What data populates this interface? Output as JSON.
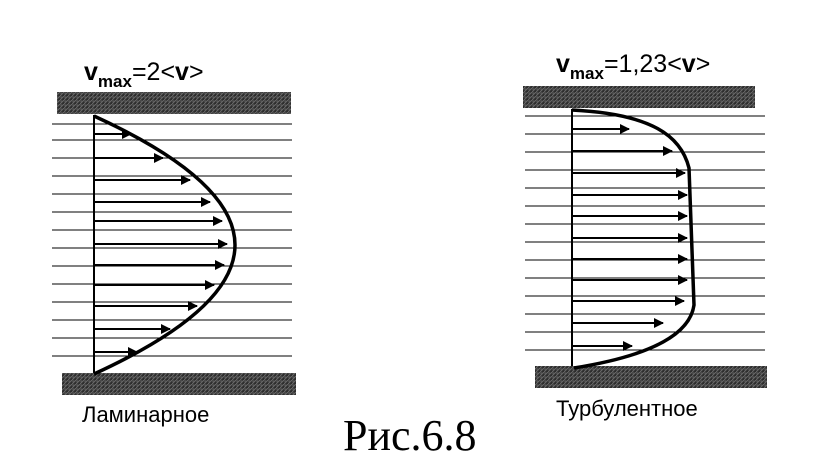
{
  "figure_caption": "Рис.6.8",
  "panels": [
    {
      "id": "laminar",
      "label": "Ламинарное",
      "formula": {
        "symbol": "v",
        "subscript": "max",
        "relation": "=2<",
        "avg_symbol": "v",
        "close": ">"
      },
      "profile": "parabolic"
    },
    {
      "id": "turbulent",
      "label": "Турбулентное",
      "formula": {
        "symbol": "v",
        "subscript": "max",
        "relation": "=1,23<",
        "avg_symbol": "v",
        "close": ">"
      },
      "profile": "flat"
    }
  ],
  "colors": {
    "ink": "#000000",
    "paper": "#ffffff",
    "wall": "#3a3a3a"
  }
}
